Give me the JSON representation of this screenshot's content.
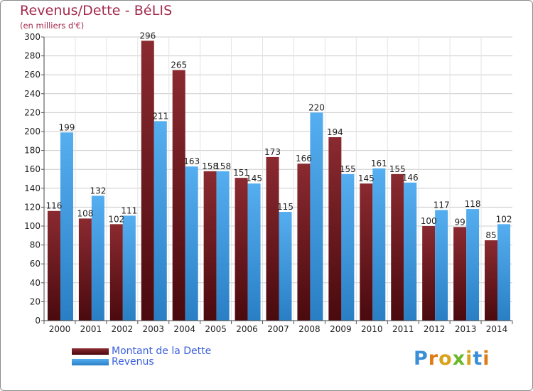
{
  "header": {
    "title": "Revenus/Dette - BéLIS",
    "subtitle": "(en milliers d'€)"
  },
  "colors": {
    "debt": "#7a1f24",
    "revenue": "#3a93d8",
    "title": "#a3294e",
    "legend_text": "#3b5fd9",
    "grid": "#cccccc"
  },
  "legend": {
    "debt_label": "Montant de la Dette",
    "revenue_label": "Revenus"
  },
  "logo": {
    "text": "Proxiti"
  },
  "chart_data": {
    "type": "bar",
    "title": "Revenus/Dette - BéLIS",
    "subtitle": "(en milliers d'€)",
    "categories": [
      "2000",
      "2001",
      "2002",
      "2003",
      "2004",
      "2005",
      "2006",
      "2007",
      "2008",
      "2009",
      "2010",
      "2011",
      "2012",
      "2013",
      "2014"
    ],
    "series": [
      {
        "name": "Montant de la Dette",
        "values": [
          116,
          108,
          102,
          296,
          265,
          158,
          151,
          173,
          166,
          194,
          145,
          155,
          100,
          99,
          85
        ]
      },
      {
        "name": "Revenus",
        "values": [
          199,
          132,
          111,
          211,
          163,
          158,
          145,
          115,
          220,
          155,
          161,
          146,
          117,
          118,
          102
        ]
      }
    ],
    "ylim": [
      0,
      300
    ],
    "yticks": [
      0,
      20,
      40,
      60,
      80,
      100,
      120,
      140,
      160,
      180,
      200,
      220,
      240,
      260,
      280,
      300
    ],
    "grid": true,
    "legend_position": "bottom-left",
    "data_labels": true
  }
}
